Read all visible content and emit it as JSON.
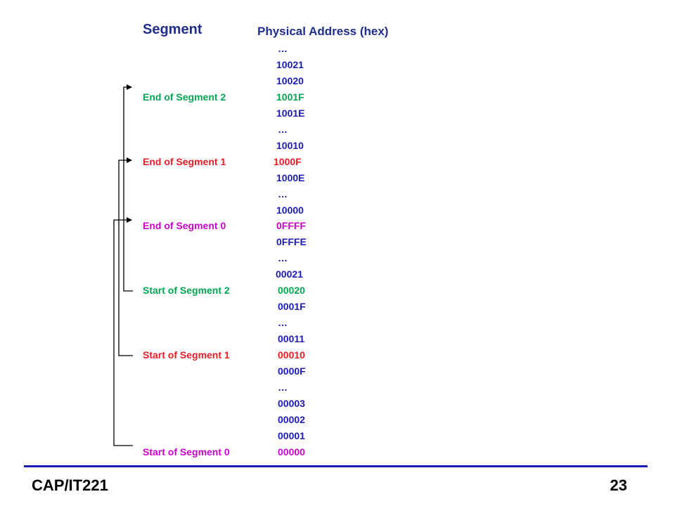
{
  "header": {
    "segment": "Segment",
    "physical_address": "Physical Address (hex)"
  },
  "rows": [
    {
      "label": "",
      "address": "…",
      "color": "blue"
    },
    {
      "label": "",
      "address": "10021",
      "color": "blue"
    },
    {
      "label": "",
      "address": "10020",
      "color": "blue"
    },
    {
      "label": "End of Segment 2",
      "address": "1001F",
      "color": "green"
    },
    {
      "label": "",
      "address": "1001E",
      "color": "blue"
    },
    {
      "label": "",
      "address": "…",
      "color": "blue"
    },
    {
      "label": "",
      "address": "10010",
      "color": "blue"
    },
    {
      "label": "End of Segment 1",
      "address": "1000F",
      "color": "red"
    },
    {
      "label": "",
      "address": "1000E",
      "color": "blue"
    },
    {
      "label": "",
      "address": "…",
      "color": "blue"
    },
    {
      "label": "",
      "address": "10000",
      "color": "blue"
    },
    {
      "label": "End of Segment 0",
      "address": "0FFFF",
      "color": "magenta"
    },
    {
      "label": "",
      "address": "0FFFE",
      "color": "blue"
    },
    {
      "label": "",
      "address": "…",
      "color": "blue"
    },
    {
      "label": "",
      "address": "00021",
      "color": "blue"
    },
    {
      "label": "Start of Segment 2",
      "address": "00020",
      "color": "green"
    },
    {
      "label": "",
      "address": "0001F",
      "color": "blue"
    },
    {
      "label": "",
      "address": "…",
      "color": "blue"
    },
    {
      "label": "",
      "address": "00011",
      "color": "blue"
    },
    {
      "label": "Start of Segment 1",
      "address": "00010",
      "color": "red"
    },
    {
      "label": "",
      "address": "0000F",
      "color": "blue"
    },
    {
      "label": "",
      "address": "…",
      "color": "blue"
    },
    {
      "label": "",
      "address": "00003",
      "color": "blue"
    },
    {
      "label": "",
      "address": "00002",
      "color": "blue"
    },
    {
      "label": "",
      "address": "00001",
      "color": "blue"
    },
    {
      "label": "Start of Segment 0",
      "address": "00000",
      "color": "magenta"
    }
  ],
  "colors": {
    "blue": "#1b1bb5",
    "green": "#00a651",
    "red": "#ed1c24",
    "magenta": "#cc00cc",
    "rule": "#1b1bb5"
  },
  "footer": {
    "course": "CAP/IT221",
    "page_number": "23"
  }
}
